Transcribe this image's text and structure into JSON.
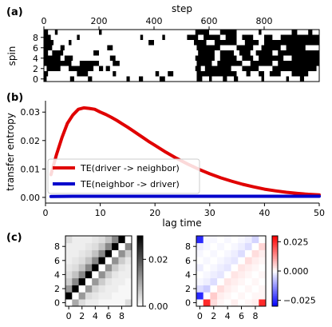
{
  "panel_labels": [
    "(a)",
    "(b)",
    "(c)"
  ],
  "chart_data": [
    {
      "type": "heatmap",
      "id": "a",
      "title": "",
      "xlabel": "step",
      "ylabel": "spin",
      "xlim": [
        0,
        1000
      ],
      "ylim": [
        0,
        9
      ],
      "x_ticks": [
        0,
        200,
        400,
        600,
        800
      ],
      "y_ticks": [
        0,
        2,
        4,
        6,
        8
      ],
      "x_axis_position": "top",
      "colors": {
        "up": "#000000",
        "down": "#ffffff"
      },
      "rows": [
        {
          "spin": 0,
          "black_intervals": [
            [
              0,
              10
            ],
            [
              95,
              110
            ],
            [
              160,
              175
            ],
            [
              300,
              312
            ],
            [
              345,
              360
            ],
            [
              420,
              440
            ],
            [
              555,
              575
            ],
            [
              600,
              610
            ],
            [
              650,
              665
            ],
            [
              690,
              705
            ],
            [
              790,
              800
            ],
            [
              880,
              890
            ],
            [
              930,
              945
            ]
          ]
        },
        {
          "spin": 1,
          "black_intervals": [
            [
              0,
              15
            ],
            [
              120,
              160
            ],
            [
              250,
              262
            ],
            [
              405,
              418
            ],
            [
              450,
              470
            ],
            [
              555,
              700
            ],
            [
              735,
              750
            ],
            [
              780,
              800
            ],
            [
              820,
              860
            ],
            [
              900,
              960
            ]
          ]
        },
        {
          "spin": 2,
          "black_intervals": [
            [
              10,
              60
            ],
            [
              90,
              180
            ],
            [
              200,
              215
            ],
            [
              225,
              240
            ],
            [
              550,
              570
            ],
            [
              585,
              680
            ],
            [
              720,
              780
            ],
            [
              830,
              990
            ]
          ]
        },
        {
          "spin": 3,
          "black_intervals": [
            [
              0,
              100
            ],
            [
              130,
              200
            ],
            [
              250,
              275
            ],
            [
              555,
              610
            ],
            [
              630,
              720
            ],
            [
              750,
              830
            ],
            [
              850,
              1000
            ]
          ]
        },
        {
          "spin": 4,
          "black_intervals": [
            [
              0,
              60
            ],
            [
              75,
              105
            ],
            [
              240,
              260
            ],
            [
              550,
              620
            ],
            [
              640,
              700
            ],
            [
              720,
              760
            ],
            [
              780,
              870
            ],
            [
              900,
              1000
            ]
          ]
        },
        {
          "spin": 5,
          "black_intervals": [
            [
              0,
              15
            ],
            [
              30,
              70
            ],
            [
              180,
              200
            ],
            [
              560,
              620
            ],
            [
              640,
              690
            ],
            [
              710,
              750
            ],
            [
              770,
              830
            ],
            [
              850,
              1000
            ]
          ]
        },
        {
          "spin": 6,
          "black_intervals": [
            [
              0,
              30
            ],
            [
              60,
              75
            ],
            [
              230,
              250
            ],
            [
              555,
              640
            ],
            [
              700,
              760
            ],
            [
              790,
              860
            ],
            [
              880,
              950
            ]
          ]
        },
        {
          "spin": 7,
          "black_intervals": [
            [
              0,
              35
            ],
            [
              90,
              100
            ],
            [
              380,
              400
            ],
            [
              545,
              590
            ],
            [
              620,
              700
            ],
            [
              730,
              780
            ],
            [
              800,
              1000
            ]
          ]
        },
        {
          "spin": 8,
          "black_intervals": [
            [
              0,
              25
            ],
            [
              120,
              130
            ],
            [
              350,
              360
            ],
            [
              430,
              440
            ],
            [
              520,
              560
            ],
            [
              580,
              640
            ],
            [
              660,
              700
            ],
            [
              720,
              760
            ],
            [
              800,
              830
            ],
            [
              860,
              1000
            ]
          ]
        },
        {
          "spin": 9,
          "black_intervals": [
            [
              0,
              15
            ],
            [
              40,
              50
            ],
            [
              200,
              210
            ],
            [
              550,
              600
            ],
            [
              640,
              700
            ],
            [
              780,
              790
            ],
            [
              900,
              920
            ],
            [
              960,
              975
            ]
          ]
        }
      ]
    },
    {
      "type": "line",
      "id": "b",
      "title": "",
      "xlabel": "lag time",
      "ylabel": "transfer entropy",
      "xlim": [
        0,
        50
      ],
      "ylim": [
        -0.002,
        0.034
      ],
      "x_ticks": [
        0,
        10,
        20,
        30,
        40,
        50
      ],
      "y_ticks": [
        0.0,
        0.01,
        0.02,
        0.03
      ],
      "y_tick_labels": [
        "0.00",
        "0.01",
        "0.02",
        "0.03"
      ],
      "legend_position": "center-left",
      "series": [
        {
          "name": "TE(driver -> neighbor)",
          "color": "#e00000",
          "x": [
            1,
            2,
            3,
            4,
            5,
            6,
            7,
            8,
            9,
            10,
            11,
            12,
            13,
            14,
            15,
            16,
            17,
            18,
            19,
            20,
            22,
            24,
            26,
            28,
            30,
            32,
            34,
            36,
            38,
            40,
            42,
            44,
            46,
            48,
            50
          ],
          "y": [
            0.008,
            0.015,
            0.021,
            0.026,
            0.029,
            0.031,
            0.0315,
            0.0313,
            0.031,
            0.03,
            0.0292,
            0.0282,
            0.0271,
            0.0259,
            0.0247,
            0.0234,
            0.0221,
            0.0208,
            0.0195,
            0.0183,
            0.0159,
            0.0137,
            0.0117,
            0.0099,
            0.0083,
            0.0069,
            0.0057,
            0.0046,
            0.0037,
            0.0029,
            0.0023,
            0.0018,
            0.0014,
            0.0011,
            0.0009
          ]
        },
        {
          "name": "TE(neighbor -> driver)",
          "color": "#0000cc",
          "x": [
            1,
            5,
            10,
            15,
            20,
            25,
            30,
            35,
            40,
            45,
            50
          ],
          "y": [
            0.0003,
            0.0004,
            0.0004,
            0.0004,
            0.0004,
            0.0004,
            0.0004,
            0.0004,
            0.0004,
            0.0004,
            0.0004
          ]
        }
      ]
    },
    {
      "type": "heatmap",
      "id": "c-left",
      "title": "",
      "xlim": [
        0,
        9
      ],
      "ylim": [
        0,
        9
      ],
      "x_ticks": [
        0,
        2,
        4,
        6,
        8
      ],
      "y_ticks": [
        0,
        2,
        4,
        6,
        8
      ],
      "colormap": "greys",
      "vmin": 0.0,
      "vmax": 0.03,
      "colorbar_ticks": [
        0.0,
        0.02
      ],
      "colorbar_tick_labels": [
        "0.00",
        "0.02"
      ],
      "values": [
        [
          0.0,
          0.01,
          0.004,
          0.002,
          0.002,
          0.001,
          0.001,
          0.001,
          0.001,
          0.004
        ],
        [
          0.03,
          0.0,
          0.012,
          0.004,
          0.003,
          0.002,
          0.002,
          0.001,
          0.001,
          0.001
        ],
        [
          0.012,
          0.03,
          0.0,
          0.012,
          0.005,
          0.003,
          0.002,
          0.002,
          0.001,
          0.001
        ],
        [
          0.006,
          0.014,
          0.03,
          0.0,
          0.012,
          0.006,
          0.003,
          0.002,
          0.002,
          0.001
        ],
        [
          0.004,
          0.007,
          0.014,
          0.03,
          0.0,
          0.013,
          0.006,
          0.003,
          0.002,
          0.002
        ],
        [
          0.003,
          0.004,
          0.007,
          0.014,
          0.03,
          0.0,
          0.013,
          0.006,
          0.003,
          0.002
        ],
        [
          0.002,
          0.003,
          0.004,
          0.007,
          0.014,
          0.03,
          0.0,
          0.013,
          0.006,
          0.003
        ],
        [
          0.002,
          0.002,
          0.003,
          0.004,
          0.007,
          0.014,
          0.03,
          0.0,
          0.013,
          0.006
        ],
        [
          0.002,
          0.002,
          0.002,
          0.003,
          0.004,
          0.007,
          0.014,
          0.03,
          0.0,
          0.014
        ],
        [
          0.004,
          0.002,
          0.002,
          0.002,
          0.003,
          0.004,
          0.007,
          0.014,
          0.03,
          0.0
        ]
      ]
    },
    {
      "type": "heatmap",
      "id": "c-right",
      "title": "",
      "xlim": [
        0,
        9
      ],
      "ylim": [
        0,
        9
      ],
      "x_ticks": [
        0,
        2,
        4,
        6,
        8
      ],
      "y_ticks": [
        0,
        2,
        4,
        6,
        8
      ],
      "colormap": "bwr",
      "vmin": -0.03,
      "vmax": 0.03,
      "colorbar_ticks": [
        0.025,
        0.0,
        -0.025
      ],
      "colorbar_tick_labels": [
        "0.025",
        "0.000",
        "−0.025"
      ],
      "values": [
        [
          0.0,
          0.025,
          0.004,
          0.001,
          0.0,
          0.002,
          0.0,
          0.001,
          0.002,
          0.025
        ],
        [
          -0.025,
          0.0,
          0.006,
          0.002,
          0.001,
          0.0,
          0.001,
          0.0,
          0.001,
          0.001
        ],
        [
          -0.004,
          -0.006,
          0.0,
          0.004,
          0.002,
          0.001,
          0.0,
          0.001,
          0.0,
          0.001
        ],
        [
          -0.001,
          -0.002,
          -0.004,
          0.0,
          0.003,
          0.002,
          0.001,
          0.0,
          0.001,
          0.0
        ],
        [
          0.0,
          -0.001,
          -0.002,
          -0.003,
          0.0,
          0.003,
          0.002,
          0.001,
          0.0,
          0.001
        ],
        [
          -0.002,
          0.0,
          -0.001,
          -0.002,
          -0.003,
          0.0,
          0.003,
          0.002,
          0.001,
          0.0
        ],
        [
          0.0,
          -0.001,
          0.0,
          -0.001,
          -0.002,
          -0.003,
          0.0,
          0.004,
          0.002,
          0.001
        ],
        [
          -0.001,
          0.0,
          -0.001,
          0.0,
          -0.001,
          -0.002,
          -0.004,
          0.0,
          0.004,
          0.002
        ],
        [
          -0.002,
          -0.001,
          0.0,
          -0.001,
          0.0,
          -0.001,
          -0.002,
          -0.004,
          0.0,
          0.005
        ],
        [
          -0.025,
          -0.001,
          -0.001,
          0.0,
          -0.001,
          0.0,
          -0.001,
          -0.002,
          -0.005,
          0.0
        ]
      ]
    }
  ]
}
